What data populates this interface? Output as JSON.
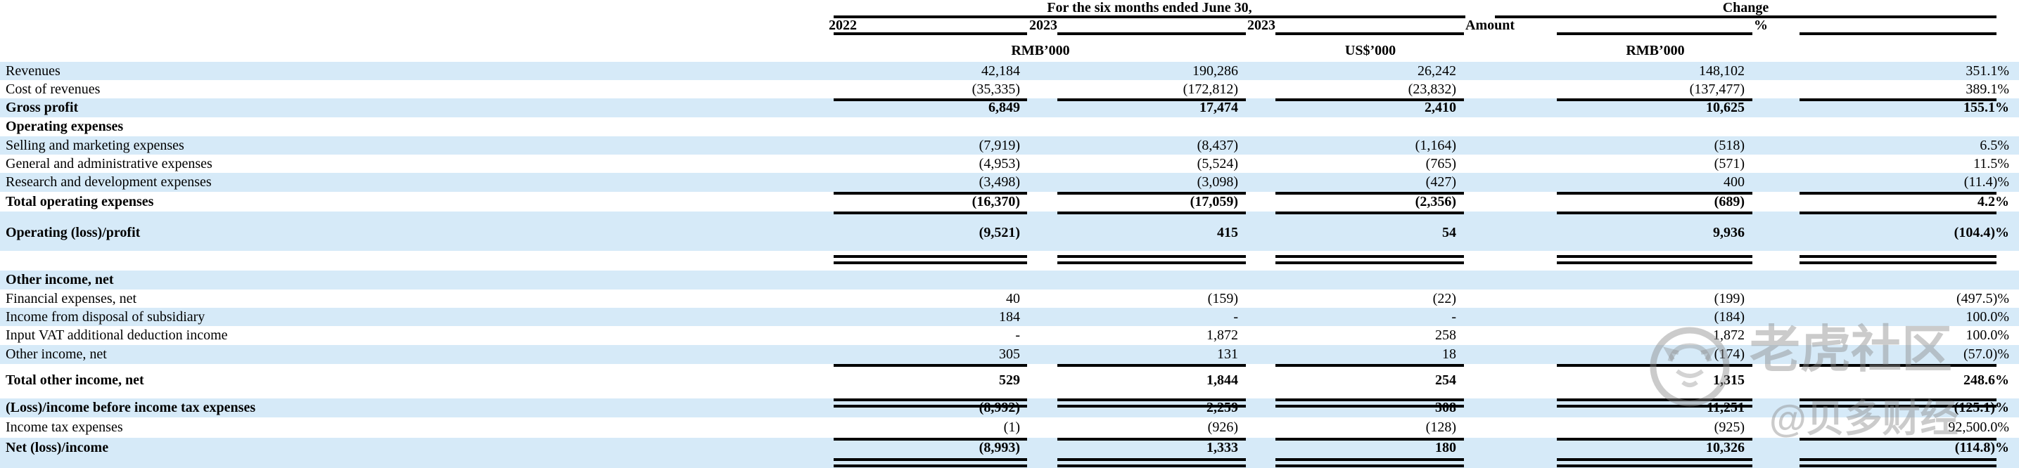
{
  "header": {
    "group1": "For the six months ended June 30,",
    "group2": "Change",
    "years": [
      "2022",
      "2023",
      "2023",
      "Amount",
      "%"
    ],
    "units": {
      "rmb_left": "RMB’000",
      "usd": "US$’000",
      "rmb_right": "RMB’000"
    }
  },
  "colors": {
    "stripe_blue": "#d6eaf8",
    "rule_black": "#000000",
    "watermark_gray": "#8c8c8c"
  },
  "watermark": {
    "brand": "老虎社区",
    "handle": "@贝多财经",
    "logo_icon": "tiger-circle-logo-icon"
  },
  "table": {
    "columns": [
      "2022 RMB'000",
      "2023 RMB'000",
      "2023 US$'000",
      "Change Amount RMB'000",
      "Change %"
    ],
    "rows": [
      {
        "label": "Revenues",
        "values": [
          "42,184",
          "190,286",
          "26,242",
          "148,102",
          "351.1%"
        ],
        "bg": "blue",
        "bold": false
      },
      {
        "label": "Cost of revenues",
        "values": [
          "(35,335)",
          "(172,812)",
          "(23,832)",
          "(137,477)",
          "389.1%"
        ],
        "bg": "white",
        "bold": false
      },
      {
        "label": "Gross profit",
        "values": [
          "6,849",
          "17,474",
          "2,410",
          "10,625",
          "155.1%"
        ],
        "bg": "blue",
        "bold": true,
        "rule_above": true
      },
      {
        "label": "Operating expenses",
        "values": [
          "",
          "",
          "",
          "",
          ""
        ],
        "bg": "white",
        "bold": true
      },
      {
        "label": "Selling and marketing expenses",
        "values": [
          "(7,919)",
          "(8,437)",
          "(1,164)",
          "(518)",
          "6.5%"
        ],
        "bg": "blue",
        "bold": false
      },
      {
        "label": "General and administrative expenses",
        "values": [
          "(4,953)",
          "(5,524)",
          "(765)",
          "(571)",
          "11.5%"
        ],
        "bg": "white",
        "bold": false
      },
      {
        "label": "Research and development expenses",
        "values": [
          "(3,498)",
          "(3,098)",
          "(427)",
          "400",
          "(11.4)%"
        ],
        "bg": "blue",
        "bold": false
      },
      {
        "label": "Total operating expenses",
        "values": [
          "(16,370)",
          "(17,059)",
          "(2,356)",
          "(689)",
          "4.2%"
        ],
        "bg": "white",
        "bold": true,
        "rule_above": true
      },
      {
        "label": "Operating (loss)/profit",
        "values": [
          "(9,521)",
          "415",
          "54",
          "9,936",
          "(104.4)%"
        ],
        "bg": "blue",
        "bold": true,
        "rule_above": true,
        "double_below": true
      },
      {
        "spacer": true
      },
      {
        "label": "Other income, net",
        "values": [
          "",
          "",
          "",
          "",
          ""
        ],
        "bg": "blue",
        "bold": true
      },
      {
        "label": "Financial expenses, net",
        "values": [
          "40",
          "(159)",
          "(22)",
          "(199)",
          "(497.5)%"
        ],
        "bg": "white",
        "bold": false
      },
      {
        "label": "Income from disposal of subsidiary",
        "values": [
          "184",
          "-",
          "-",
          "(184)",
          "100.0%"
        ],
        "bg": "blue",
        "bold": false
      },
      {
        "label": "Input VAT additional deduction income",
        "values": [
          "-",
          "1,872",
          "258",
          "1,872",
          "100.0%"
        ],
        "bg": "white",
        "bold": false
      },
      {
        "label": "Other income, net",
        "values": [
          "305",
          "131",
          "18",
          "(174)",
          "(57.0)%"
        ],
        "bg": "blue",
        "bold": false
      },
      {
        "label": "Total other income, net",
        "values": [
          "529",
          "1,844",
          "254",
          "1,315",
          "248.6%"
        ],
        "bg": "white",
        "bold": true,
        "rule_above": true,
        "double_below": true
      },
      {
        "label": "(Loss)/income before income tax expenses",
        "values": [
          "(8,992)",
          "2,259",
          "308",
          "11,251",
          "(125.1)%"
        ],
        "bg": "blue",
        "bold": true
      },
      {
        "label": "Income tax expenses",
        "values": [
          "(1)",
          "(926)",
          "(128)",
          "(925)",
          "92,500.0%"
        ],
        "bg": "white",
        "bold": false
      },
      {
        "label": "Net (loss)/income",
        "values": [
          "(8,993)",
          "1,333",
          "180",
          "10,326",
          "(114.8)%"
        ],
        "bg": "blue",
        "bold": true,
        "rule_above": true,
        "double_below": true
      }
    ]
  }
}
